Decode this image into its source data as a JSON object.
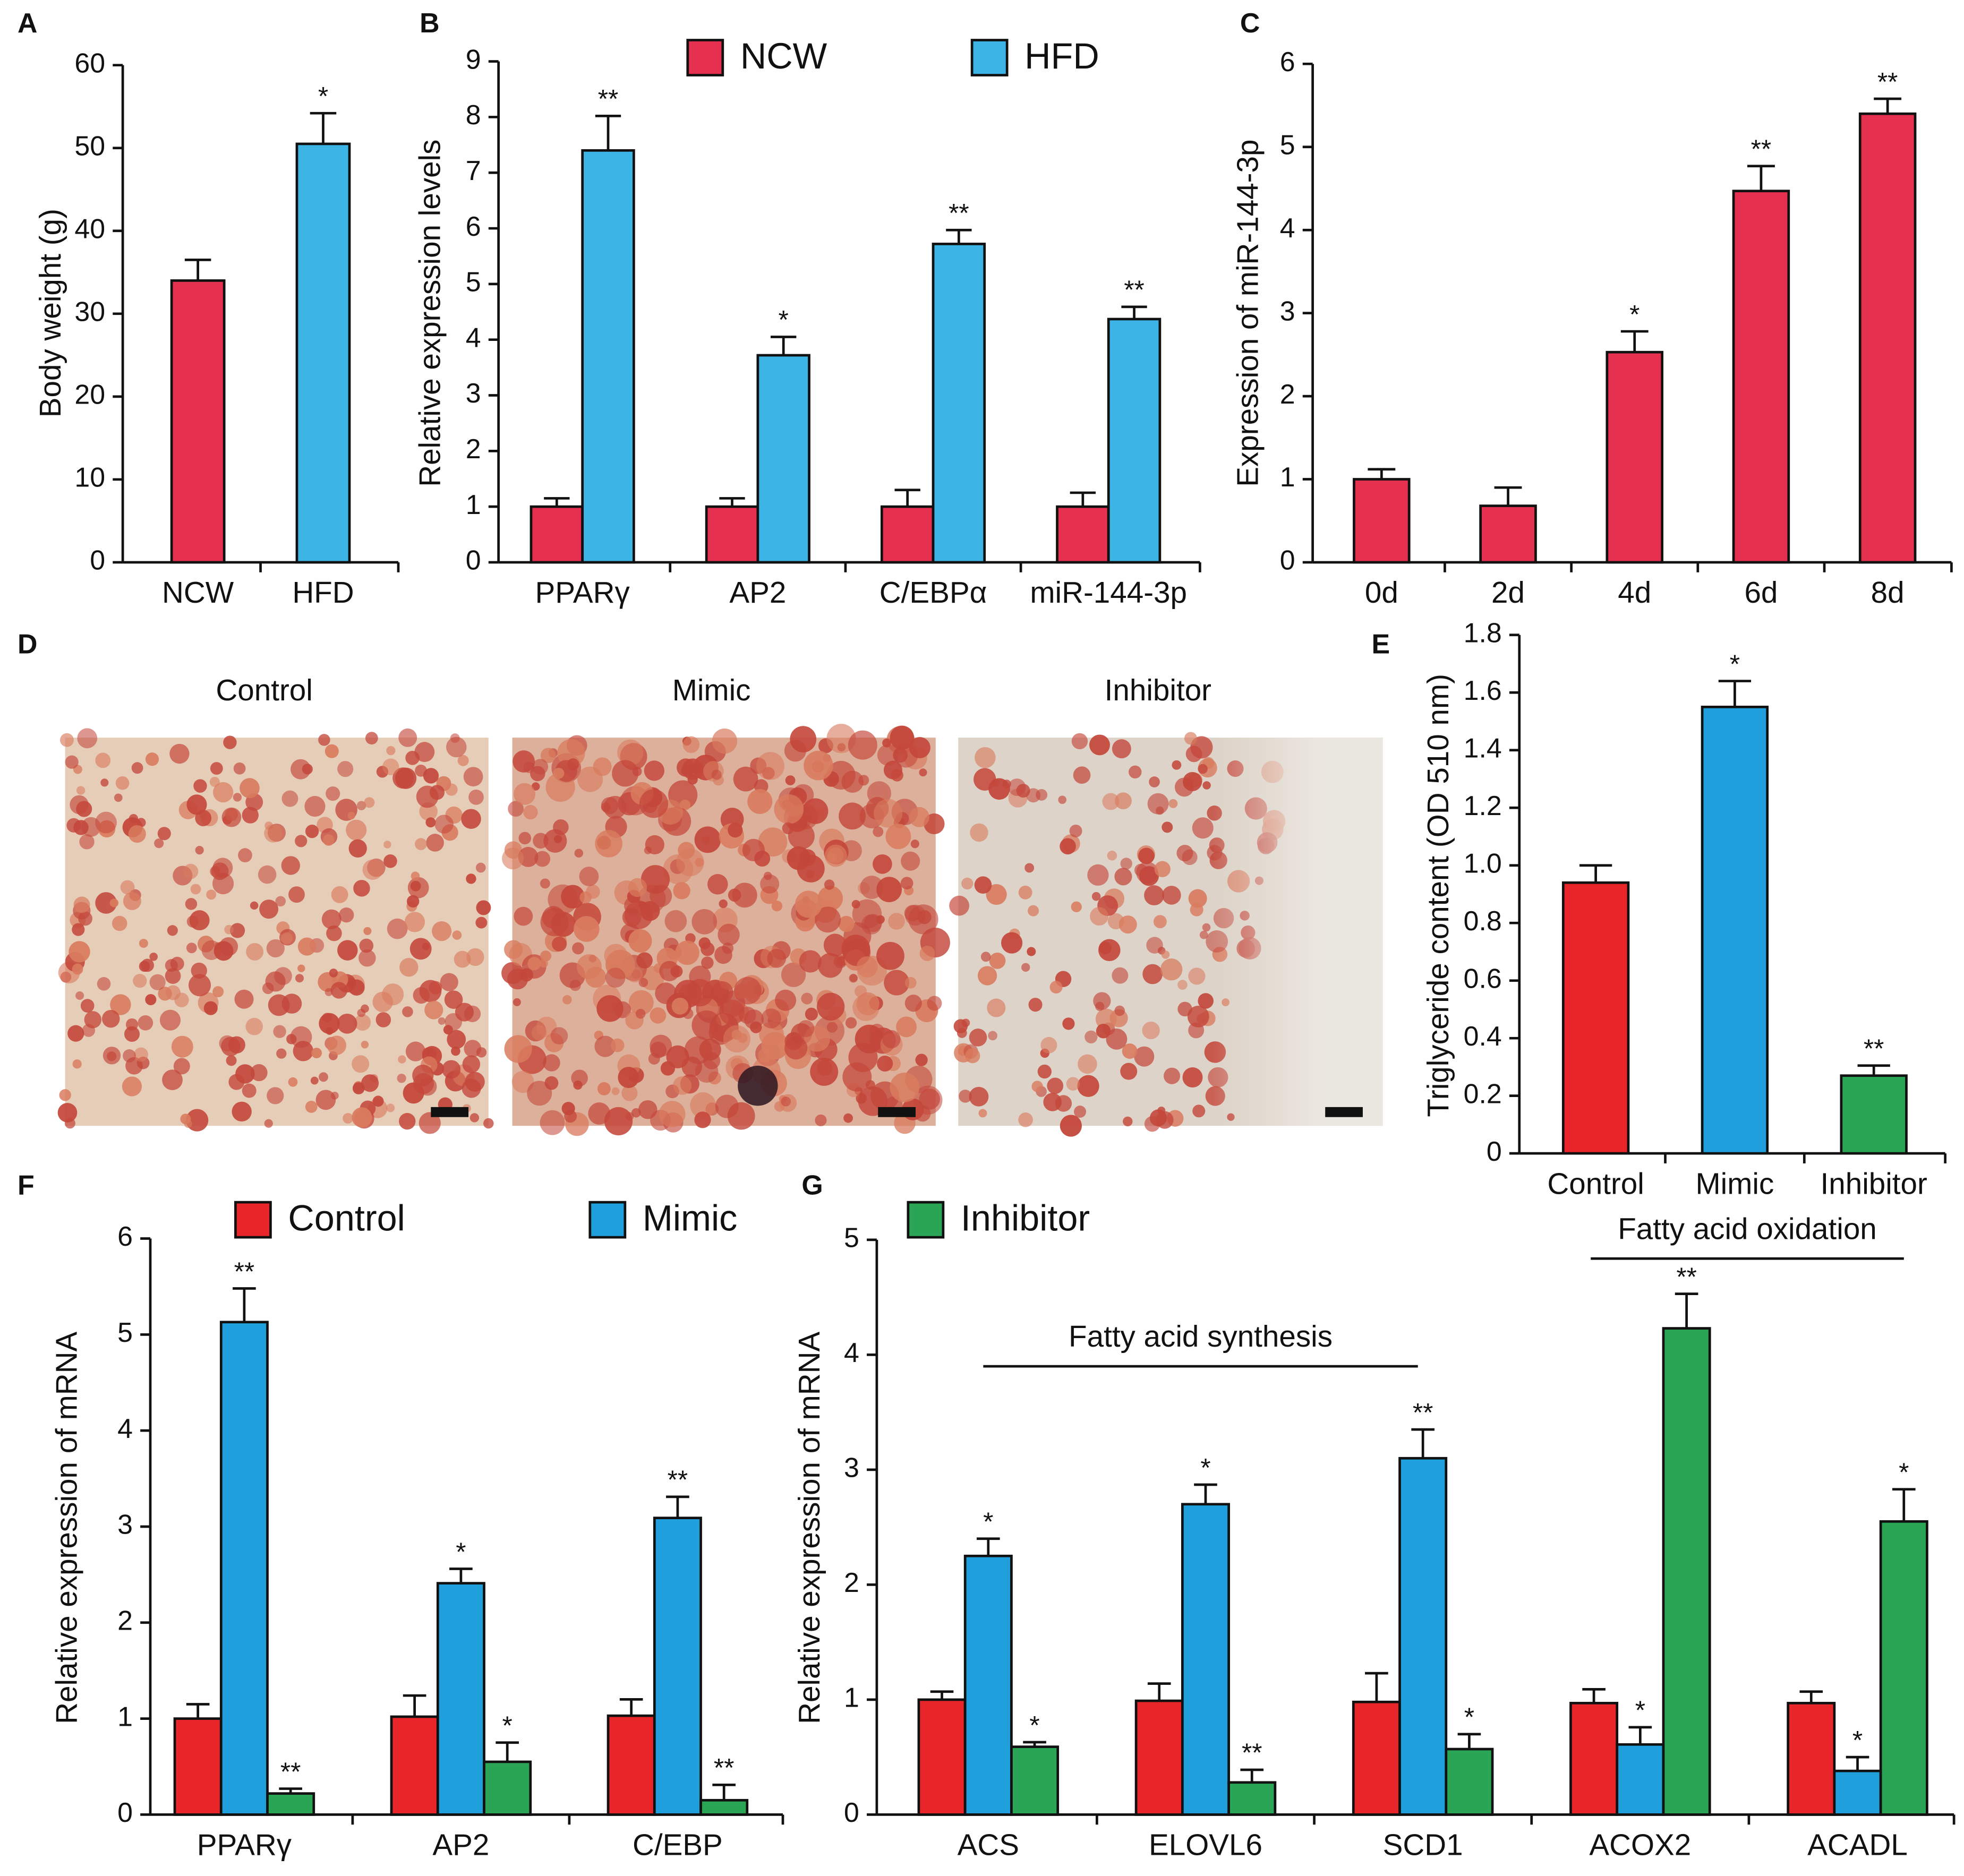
{
  "chart_data": [
    {
      "type": "bar",
      "panel": "A",
      "ylabel": "Body weight (g)",
      "categories": [
        "NCW",
        "HFD"
      ],
      "values": [
        34,
        50.5
      ],
      "errors": [
        2.5,
        3.7
      ],
      "annotations": [
        null,
        "*"
      ],
      "colors": [
        "#e63050",
        "#3db4e6"
      ],
      "ylim": [
        0,
        60
      ],
      "yticks": [
        0,
        10,
        20,
        30,
        40,
        50,
        60
      ]
    },
    {
      "type": "bar",
      "panel": "B",
      "ylabel": "Relative expression levels",
      "categories": [
        "PPARγ",
        "AP2",
        "C/EBPα",
        "miR-144-3p"
      ],
      "series": [
        {
          "name": "NCW",
          "color": "#e63050",
          "values": [
            1,
            1,
            1,
            1
          ],
          "errors": [
            0.15,
            0.15,
            0.3,
            0.25
          ]
        },
        {
          "name": "HFD",
          "color": "#3db4e6",
          "values": [
            7.4,
            3.72,
            5.72,
            4.37
          ],
          "errors": [
            0.62,
            0.33,
            0.25,
            0.22
          ],
          "annotations": [
            "**",
            "*",
            "**",
            "**"
          ]
        }
      ],
      "ylim": [
        0,
        9
      ],
      "yticks": [
        0,
        1,
        2,
        3,
        4,
        5,
        6,
        7,
        8,
        9
      ],
      "legend": "top"
    },
    {
      "type": "bar",
      "panel": "C",
      "ylabel": "Expression of miR-144-3p",
      "categories": [
        "0d",
        "2d",
        "4d",
        "6d",
        "8d"
      ],
      "values": [
        1,
        0.68,
        2.53,
        4.47,
        5.4
      ],
      "errors": [
        0.12,
        0.22,
        0.25,
        0.3,
        0.18
      ],
      "annotations": [
        null,
        null,
        "*",
        "**",
        "**"
      ],
      "color": "#e63050",
      "ylim": [
        0,
        6
      ],
      "yticks": [
        0,
        1,
        2,
        3,
        4,
        5,
        6
      ]
    },
    {
      "type": "bar",
      "panel": "E",
      "ylabel": "Triglyceride content (OD 510 nm)",
      "categories": [
        "Control",
        "Mimic",
        "Inhibitor"
      ],
      "values": [
        0.94,
        1.55,
        0.27
      ],
      "errors": [
        0.06,
        0.09,
        0.035
      ],
      "annotations": [
        null,
        "*",
        "**"
      ],
      "colors": [
        "#e8262a",
        "#1fa0dc",
        "#2aa556"
      ],
      "ylim": [
        0,
        1.8
      ],
      "yticks": [
        0,
        0.2,
        0.4,
        0.6,
        0.8,
        {
          "value": 1,
          "label": "1.0"
        },
        1.2,
        1.4,
        1.6,
        1.8
      ]
    },
    {
      "type": "bar",
      "panel": "F",
      "ylabel": "Relative expression of mRNA",
      "categories": [
        "PPARγ",
        "AP2",
        "C/EBP"
      ],
      "series": [
        {
          "name": "Control",
          "color": "#e8262a",
          "values": [
            1,
            1.02,
            1.03
          ],
          "errors": [
            0.15,
            0.22,
            0.17
          ]
        },
        {
          "name": "Mimic",
          "color": "#1fa0dc",
          "values": [
            5.13,
            2.41,
            3.09
          ],
          "errors": [
            0.35,
            0.15,
            0.22
          ],
          "annotations": [
            "**",
            "*",
            "**"
          ]
        },
        {
          "name": "Inhibitor",
          "color": "#2aa556",
          "values": [
            0.22,
            0.55,
            0.15
          ],
          "errors": [
            0.05,
            0.2,
            0.16
          ],
          "annotations": [
            "**",
            "*",
            "**"
          ]
        }
      ],
      "ylim": [
        0,
        6
      ],
      "yticks": [
        0,
        1,
        2,
        3,
        4,
        5,
        6
      ],
      "legend": "top"
    },
    {
      "type": "bar",
      "panel": "G",
      "ylabel": "Relative expression of mRNA",
      "categories": [
        "ACS",
        "ELOVL6",
        "SCD1",
        "ACOX2",
        "ACADL"
      ],
      "series": [
        {
          "color": "#e8262a",
          "values": [
            1.0,
            0.99,
            0.98,
            0.97,
            0.97
          ],
          "errors": [
            0.07,
            0.15,
            0.25,
            0.12,
            0.1
          ]
        },
        {
          "color": "#1fa0dc",
          "values": [
            2.25,
            2.7,
            3.1,
            0.61,
            0.38
          ],
          "errors": [
            0.15,
            0.17,
            0.25,
            0.15,
            0.12
          ],
          "annotations": [
            "*",
            "*",
            "**",
            "*",
            "*"
          ]
        },
        {
          "color": "#2aa556",
          "values": [
            0.59,
            0.28,
            0.57,
            4.23,
            2.55
          ],
          "errors": [
            0.04,
            0.11,
            0.13,
            0.3,
            0.28
          ],
          "annotations": [
            "*",
            "**",
            "*",
            "**",
            "*"
          ]
        }
      ],
      "group_labels": [
        "Fatty acid synthesis",
        "Fatty acid oxidation"
      ],
      "ylim": [
        0,
        5
      ],
      "yticks": [
        0,
        1,
        2,
        3,
        4,
        5
      ]
    }
  ],
  "micrographs": {
    "panel": "D",
    "titles": [
      "Control",
      "Mimic",
      "Inhibitor"
    ]
  }
}
